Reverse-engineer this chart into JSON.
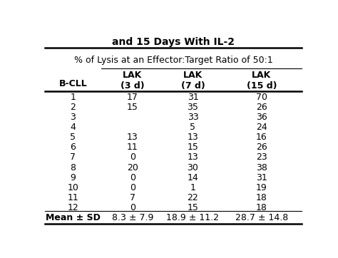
{
  "title_line1": "and 15 Days With IL-2",
  "subtitle": "% of Lysis at an Effector:Target Ratio of 50:1",
  "col0_header": "B-CLL",
  "col1_header": "LAK\n(3 d)",
  "col2_header": "LAK\n(7 d)",
  "col3_header": "LAK\n(15 d)",
  "rows": [
    [
      "1",
      "17",
      "31",
      "70"
    ],
    [
      "2",
      "15",
      "35",
      "26"
    ],
    [
      "3",
      "",
      "33",
      "36"
    ],
    [
      "4",
      "",
      "5",
      "24"
    ],
    [
      "5",
      "13",
      "13",
      "16"
    ],
    [
      "6",
      "11",
      "15",
      "26"
    ],
    [
      "7",
      "0",
      "13",
      "23"
    ],
    [
      "8",
      "20",
      "30",
      "38"
    ],
    [
      "9",
      "0",
      "14",
      "31"
    ],
    [
      "10",
      "0",
      "1",
      "19"
    ],
    [
      "11",
      "7",
      "22",
      "18"
    ],
    [
      "12",
      "0",
      "15",
      "18"
    ]
  ],
  "mean_row": [
    "Mean ± SD",
    "8.3 ± 7.9",
    "18.9 ± 11.2",
    "28.7 ± 14.8"
  ],
  "bg_color": "#ffffff",
  "text_color": "#000000",
  "font_size": 9,
  "header_font_size": 9,
  "title_font_size": 10
}
